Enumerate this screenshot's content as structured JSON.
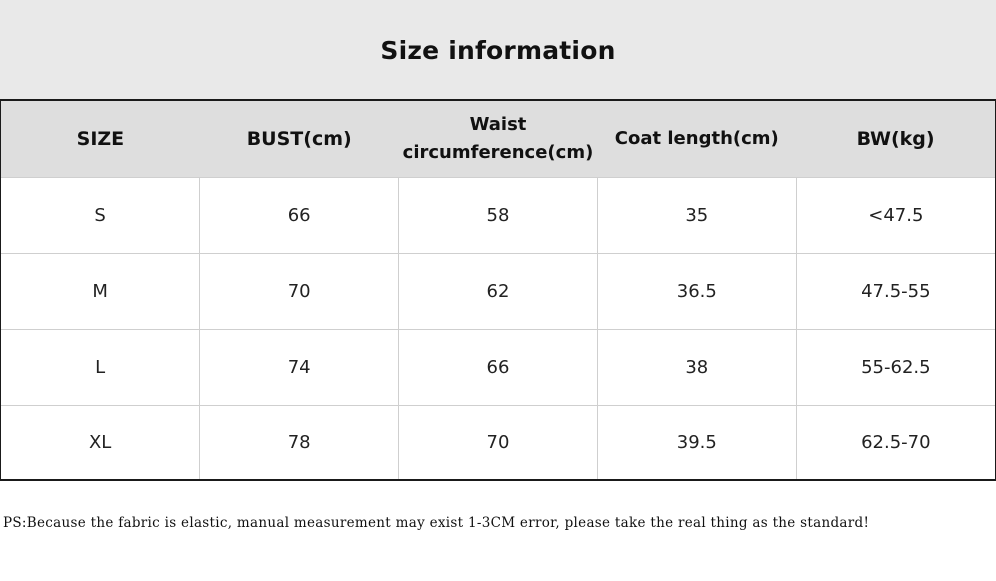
{
  "title": "Size information",
  "table": {
    "headers": {
      "size": "SIZE",
      "bust": "BUST(cm)",
      "waist_line1": "Waist",
      "waist_line2": "circumference(cm)",
      "coat_length": "Coat length(cm)",
      "bw": "BW(kg)"
    },
    "rows": [
      {
        "size": "S",
        "bust": "66",
        "waist": "58",
        "coat_length": "35",
        "bw": "<47.5"
      },
      {
        "size": "M",
        "bust": "70",
        "waist": "62",
        "coat_length": "36.5",
        "bw": "47.5-55"
      },
      {
        "size": "L",
        "bust": "74",
        "waist": "66",
        "coat_length": "38",
        "bw": "55-62.5"
      },
      {
        "size": "XL",
        "bust": "78",
        "waist": "70",
        "coat_length": "39.5",
        "bw": "62.5-70"
      }
    ]
  },
  "note": "PS:Because the fabric is elastic, manual measurement may exist 1-3CM error, please take the real thing as the standard!"
}
